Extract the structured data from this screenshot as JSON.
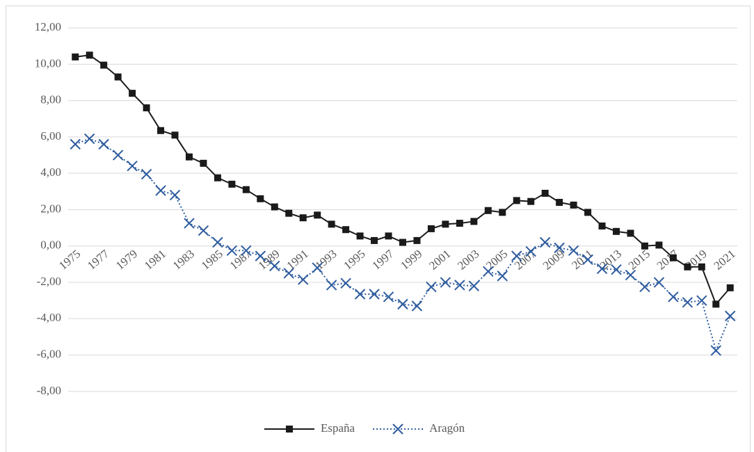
{
  "chart_data": {
    "type": "line",
    "categories": [
      "1975",
      null,
      "1977",
      null,
      "1979",
      null,
      "1981",
      null,
      "1983",
      null,
      "1985",
      null,
      "1987",
      null,
      "1989",
      null,
      "1991",
      null,
      "1993",
      null,
      "1995",
      null,
      "1997",
      null,
      "1999",
      null,
      "2001",
      null,
      "2003",
      null,
      "2005",
      null,
      "2007",
      null,
      "2009",
      null,
      "2011",
      null,
      "2013",
      null,
      "2015",
      null,
      "2017",
      null,
      "2019",
      null,
      "2021"
    ],
    "series": [
      {
        "name": "España",
        "color": "#1a1a1a",
        "marker": "square",
        "line_style": "solid",
        "values": [
          10.4,
          10.5,
          9.95,
          9.3,
          8.4,
          7.6,
          6.35,
          6.1,
          4.9,
          4.55,
          3.75,
          3.4,
          3.1,
          2.6,
          2.15,
          1.8,
          1.55,
          1.7,
          1.2,
          0.9,
          0.55,
          0.3,
          0.55,
          0.2,
          0.3,
          0.95,
          1.2,
          1.25,
          1.35,
          1.95,
          1.85,
          2.5,
          2.45,
          2.9,
          2.4,
          2.25,
          1.85,
          1.1,
          0.8,
          0.7,
          0.0,
          0.05,
          -0.65,
          -1.15,
          -1.15,
          -3.2,
          -2.3
        ]
      },
      {
        "name": "Aragón",
        "color": "#2e5c9e",
        "marker": "x",
        "line_style": "dotted",
        "values": [
          5.6,
          5.9,
          5.6,
          5.0,
          4.4,
          3.95,
          3.05,
          2.8,
          1.25,
          0.85,
          0.2,
          -0.25,
          -0.25,
          -0.55,
          -1.1,
          -1.5,
          -1.85,
          -1.2,
          -2.15,
          -2.05,
          -2.65,
          -2.65,
          -2.8,
          -3.2,
          -3.3,
          -2.25,
          -2.0,
          -2.15,
          -2.2,
          -1.4,
          -1.65,
          -0.55,
          -0.3,
          0.2,
          -0.1,
          -0.25,
          -0.75,
          -1.25,
          -1.3,
          -1.6,
          -2.25,
          -2.0,
          -2.8,
          -3.1,
          -3.0,
          -5.75,
          -3.85
        ]
      }
    ],
    "ylim": [
      -9.0,
      12.5
    ],
    "yticks": [
      {
        "value": -8,
        "label": "-8,00"
      },
      {
        "value": -6,
        "label": "-6,00"
      },
      {
        "value": -4,
        "label": "-4,00"
      },
      {
        "value": -2,
        "label": "-2,00"
      },
      {
        "value": 0,
        "label": "0,00"
      },
      {
        "value": 2,
        "label": "2,00"
      },
      {
        "value": 4,
        "label": "4,00"
      },
      {
        "value": 6,
        "label": "6,00"
      },
      {
        "value": 8,
        "label": "8,00"
      },
      {
        "value": 10,
        "label": "10,00"
      },
      {
        "value": 12,
        "label": "12,00"
      }
    ],
    "grid": true,
    "legend": "bottom"
  }
}
